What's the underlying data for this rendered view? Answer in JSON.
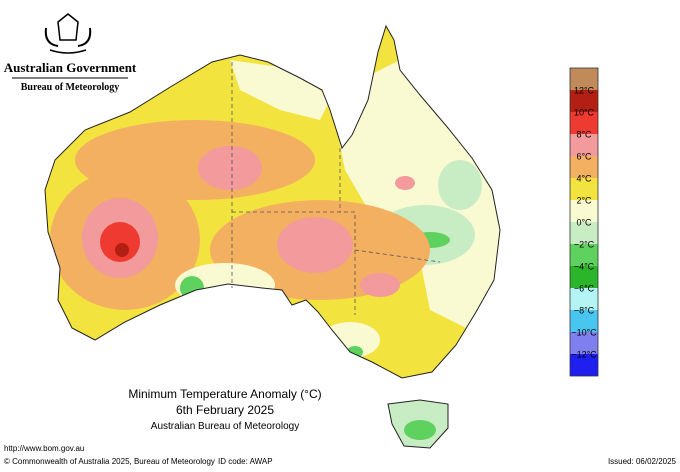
{
  "header": {
    "government": "Australian Government",
    "bureau": "Bureau of Meteorology"
  },
  "legend": {
    "colors": [
      "#c08a5a",
      "#b31f12",
      "#ef3a32",
      "#f39a9c",
      "#f3b061",
      "#f3e33f",
      "#fafad2",
      "#c8ecc4",
      "#5fd15f",
      "#2ab52a",
      "#b4f4f4",
      "#49c6f0",
      "#7f7ff0",
      "#1f1ff0"
    ],
    "labels": [
      "12°C",
      "10°C",
      "8°C",
      "6°C",
      "4°C",
      "2°C",
      "0°C",
      "−2°C",
      "−4°C",
      "−6°C",
      "−8°C",
      "−10°C",
      "−12°C"
    ]
  },
  "title": {
    "line1": "Minimum Temperature Anomaly (°C)",
    "line2": "6th February 2025",
    "line3": "Australian Bureau of Meteorology"
  },
  "footer": {
    "url": "http://www.bom.gov.au",
    "copyright": "© Commonwealth of Australia 2025, Bureau of Meteorology",
    "id_code": "ID code: AWAP",
    "issued": "Issued: 06/02/2025"
  }
}
